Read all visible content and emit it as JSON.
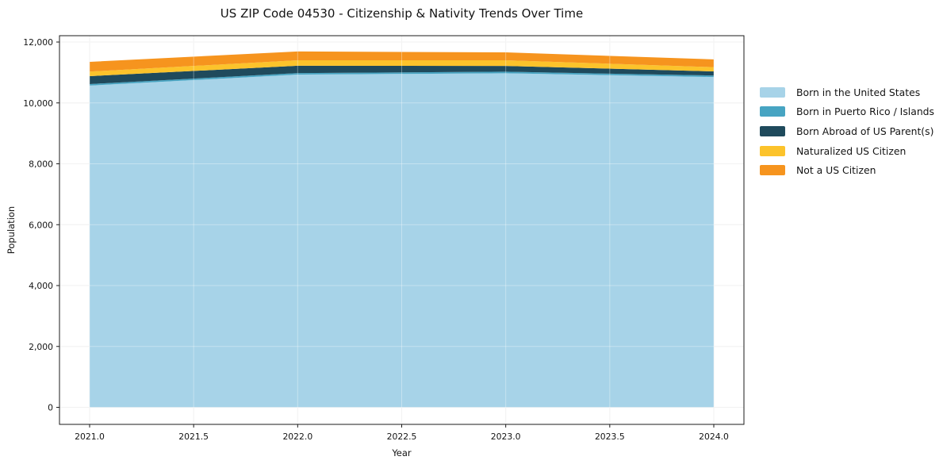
{
  "chart_data": {
    "type": "area",
    "stacked": true,
    "title": "US ZIP Code 04530 - Citizenship & Nativity Trends Over Time",
    "xlabel": "Year",
    "ylabel": "Population",
    "grid": true,
    "legend_position": "right-outside",
    "x": [
      2021,
      2022,
      2023,
      2024
    ],
    "x_ticks": [
      "2021.0",
      "2021.5",
      "2022.0",
      "2022.5",
      "2023.0",
      "2023.5",
      "2024.0"
    ],
    "x_tick_values": [
      2021,
      2021.5,
      2022,
      2022.5,
      2023,
      2023.5,
      2024
    ],
    "y_ticks": [
      "0",
      "2,000",
      "4,000",
      "6,000",
      "8,000",
      "10,000",
      "12,000"
    ],
    "y_tick_values": [
      0,
      2000,
      4000,
      6000,
      8000,
      10000,
      12000
    ],
    "ylim": [
      0,
      12000
    ],
    "xlim": [
      2021,
      2024
    ],
    "series": [
      {
        "name": "Born in the United States",
        "color": "#a7d3e8",
        "values": [
          10570,
          10930,
          10975,
          10850
        ]
      },
      {
        "name": "Born in Puerto Rico / Islands",
        "color": "#47a4c2",
        "values": [
          50,
          50,
          50,
          50
        ]
      },
      {
        "name": "Born Abroad of US Parent(s)",
        "color": "#1f4a5c",
        "values": [
          260,
          240,
          190,
          135
        ]
      },
      {
        "name": "Naturalized US Citizen",
        "color": "#fcc32b",
        "values": [
          150,
          180,
          185,
          140
        ]
      },
      {
        "name": "Not a US Citizen",
        "color": "#f6941e",
        "values": [
          320,
          290,
          260,
          255
        ]
      }
    ],
    "totals": [
      11350,
      11690,
      11660,
      11430
    ]
  },
  "colors": {
    "gridline": "#ececec",
    "spine": "#1b1b1b",
    "background": "#ffffff"
  }
}
